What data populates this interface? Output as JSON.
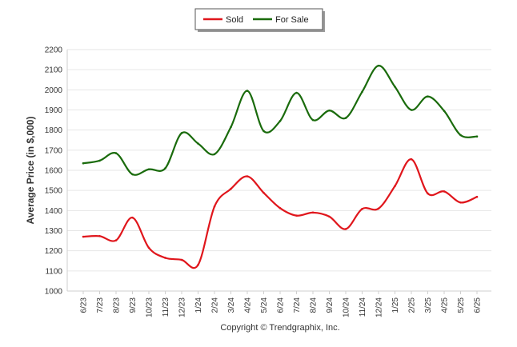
{
  "chart_data": {
    "type": "line",
    "title": "",
    "xlabel": "",
    "ylabel": "Average Price (in $,000)",
    "ylim": [
      1000,
      2200
    ],
    "yticks": [
      1000,
      1100,
      1200,
      1300,
      1400,
      1500,
      1600,
      1700,
      1800,
      1900,
      2000,
      2100,
      2200
    ],
    "grid": true,
    "legend_position": "top-center",
    "categories": [
      "6/23",
      "7/23",
      "8/23",
      "9/23",
      "10/23",
      "11/23",
      "12/23",
      "1/24",
      "2/24",
      "3/24",
      "4/24",
      "5/24",
      "6/24",
      "7/24",
      "8/24",
      "9/24",
      "10/24",
      "11/24",
      "12/24",
      "1/25",
      "2/25",
      "3/25",
      "4/25",
      "5/25",
      "6/25"
    ],
    "series": [
      {
        "name": "Sold",
        "color": "#e0161c",
        "values": [
          1270,
          1273,
          1252,
          1365,
          1215,
          1165,
          1155,
          1130,
          1420,
          1508,
          1570,
          1488,
          1412,
          1375,
          1390,
          1370,
          1308,
          1408,
          1410,
          1522,
          1655,
          1485,
          1495,
          1440,
          1468
        ]
      },
      {
        "name": "For Sale",
        "color": "#1a6b0c",
        "values": [
          1635,
          1648,
          1685,
          1580,
          1605,
          1610,
          1785,
          1733,
          1680,
          1815,
          1995,
          1795,
          1845,
          1985,
          1850,
          1897,
          1860,
          1990,
          2120,
          2015,
          1900,
          1967,
          1895,
          1775,
          1768
        ]
      }
    ],
    "annotation": "Copyright © Trendgraphix, Inc."
  }
}
